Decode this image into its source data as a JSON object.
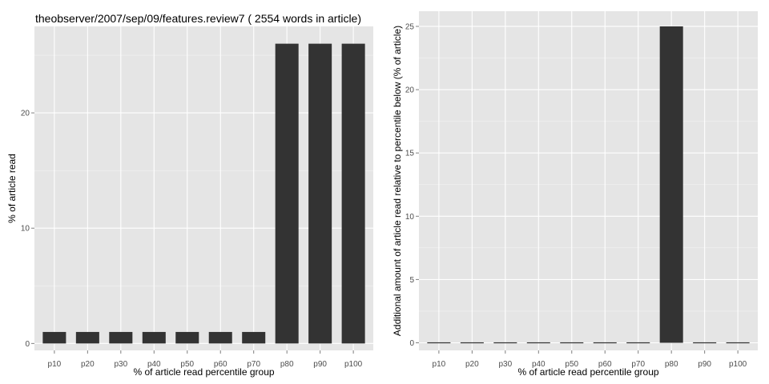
{
  "chart_data": [
    {
      "type": "bar",
      "title": "theobserver/2007/sep/09/features.review7 ( 2554 words in article)",
      "xlabel": "% of article read percentile group",
      "ylabel": "% of article read",
      "categories": [
        "p10",
        "p20",
        "p30",
        "p40",
        "p50",
        "p60",
        "p70",
        "p80",
        "p90",
        "p100"
      ],
      "values": [
        1,
        1,
        1,
        1,
        1,
        1,
        1,
        26,
        26,
        26
      ],
      "ylim": [
        -0.6,
        27.5
      ],
      "yticks": [
        0,
        10,
        20
      ],
      "bar_color": "#333333",
      "grid": true
    },
    {
      "type": "bar",
      "title": "",
      "xlabel": "% of article read percentile group",
      "ylabel": "Additional amount of article read relative to percentile below (% of article)",
      "categories": [
        "p10",
        "p20",
        "p30",
        "p40",
        "p50",
        "p60",
        "p70",
        "p80",
        "p90",
        "p100"
      ],
      "values": [
        0,
        0,
        0,
        0,
        0,
        0,
        0,
        25,
        0,
        0
      ],
      "ylim": [
        -0.6,
        26.2
      ],
      "yticks": [
        0,
        5,
        10,
        15,
        20,
        25
      ],
      "bar_color": "#333333",
      "grid": true
    }
  ]
}
